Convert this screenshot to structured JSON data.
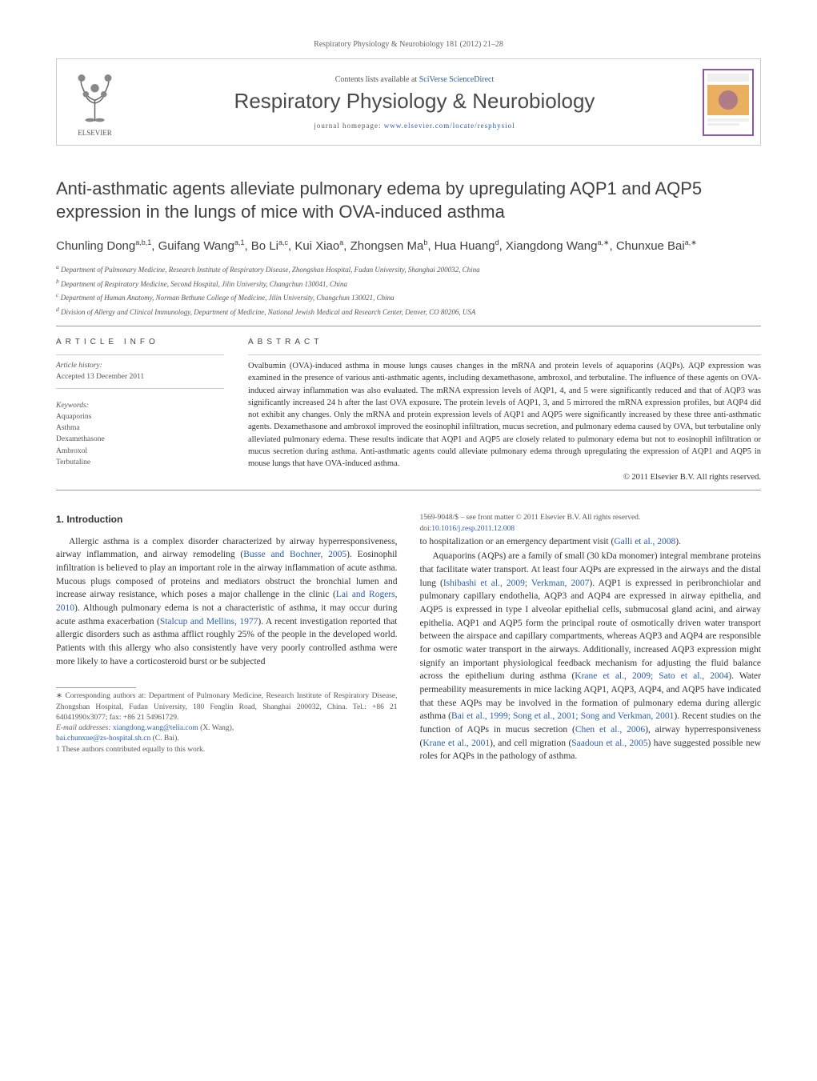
{
  "journal_ref": "Respiratory Physiology & Neurobiology 181 (2012) 21–28",
  "header": {
    "contents_prefix": "Contents lists available at ",
    "contents_link": "SciVerse ScienceDirect",
    "journal_title": "Respiratory Physiology & Neurobiology",
    "homepage_prefix": "journal homepage: ",
    "homepage_link": "www.elsevier.com/locate/resphysiol",
    "publisher_name": "ELSEVIER"
  },
  "article": {
    "title": "Anti-asthmatic agents alleviate pulmonary edema by upregulating AQP1 and AQP5 expression in the lungs of mice with OVA-induced asthma",
    "authors_html": "Chunling Dong<sup>a,b,1</sup>, Guifang Wang<sup>a,1</sup>, Bo Li<sup>a,c</sup>, Kui Xiao<sup>a</sup>, Zhongsen Ma<sup>b</sup>, Hua Huang<sup>d</sup>, Xiangdong Wang<sup>a,∗</sup>, Chunxue Bai<sup>a,∗</sup>",
    "affiliations": [
      "a Department of Pulmonary Medicine, Research Institute of Respiratory Disease, Zhongshan Hospital, Fudan University, Shanghai 200032, China",
      "b Department of Respiratory Medicine, Second Hospital, Jilin University, Changchun 130041, China",
      "c Department of Human Anatomy, Norman Bethune College of Medicine, Jilin University, Changchun 130021, China",
      "d Division of Allergy and Clinical Immunology, Department of Medicine, National Jewish Medical and Research Center, Denver, CO 80206, USA"
    ]
  },
  "info": {
    "label": "ARTICLE INFO",
    "history_label": "Article history:",
    "history_text": "Accepted 13 December 2011",
    "keywords_label": "Keywords:",
    "keywords": [
      "Aquaporins",
      "Asthma",
      "Dexamethasone",
      "Ambroxol",
      "Terbutaline"
    ]
  },
  "abstract": {
    "label": "ABSTRACT",
    "text": "Ovalbumin (OVA)-induced asthma in mouse lungs causes changes in the mRNA and protein levels of aquaporins (AQPs). AQP expression was examined in the presence of various anti-asthmatic agents, including dexamethasone, ambroxol, and terbutaline. The influence of these agents on OVA-induced airway inflammation was also evaluated. The mRNA expression levels of AQP1, 4, and 5 were significantly reduced and that of AQP3 was significantly increased 24 h after the last OVA exposure. The protein levels of AQP1, 3, and 5 mirrored the mRNA expression profiles, but AQP4 did not exhibit any changes. Only the mRNA and protein expression levels of AQP1 and AQP5 were significantly increased by these three anti-asthmatic agents. Dexamethasone and ambroxol improved the eosinophil infiltration, mucus secretion, and pulmonary edema caused by OVA, but terbutaline only alleviated pulmonary edema. These results indicate that AQP1 and AQP5 are closely related to pulmonary edema but not to eosinophil infiltration or mucus secretion during asthma. Anti-asthmatic agents could alleviate pulmonary edema through upregulating the expression of AQP1 and AQP5 in mouse lungs that have OVA-induced asthma.",
    "copyright": "© 2011 Elsevier B.V. All rights reserved."
  },
  "body": {
    "section_heading": "1. Introduction",
    "p1_pre": "Allergic asthma is a complex disorder characterized by airway hyperresponsiveness, airway inflammation, and airway remodeling (",
    "p1_link1": "Busse and Bochner, 2005",
    "p1_mid1": "). Eosinophil infiltration is believed to play an important role in the airway inflammation of acute asthma. Mucous plugs composed of proteins and mediators obstruct the bronchial lumen and increase airway resistance, which poses a major challenge in the clinic (",
    "p1_link2": "Lai and Rogers, 2010",
    "p1_mid2": "). Although pulmonary edema is not a characteristic of asthma, it may occur during acute asthma exacerbation (",
    "p1_link3": "Stalcup and Mellins, 1977",
    "p1_mid3": "). A recent investigation reported that allergic disorders such as asthma afflict roughly 25% of the people in the developed world. Patients with this allergy who also consistently have very poorly controlled asthma were more likely to have a corticosteroid burst or be subjected",
    "p2_pre": "to hospitalization or an emergency department visit (",
    "p2_link1": "Galli et al., 2008",
    "p2_post": ").",
    "p3_pre": "Aquaporins (AQPs) are a family of small (30 kDa monomer) integral membrane proteins that facilitate water transport. At least four AQPs are expressed in the airways and the distal lung (",
    "p3_link1": "Ishibashi et al., 2009; Verkman, 2007",
    "p3_mid1": "). AQP1 is expressed in peribronchiolar and pulmonary capillary endothelia, AQP3 and AQP4 are expressed in airway epithelia, and AQP5 is expressed in type I alveolar epithelial cells, submucosal gland acini, and airway epithelia. AQP1 and AQP5 form the principal route of osmotically driven water transport between the airspace and capillary compartments, whereas AQP3 and AQP4 are responsible for osmotic water transport in the airways. Additionally, increased AQP3 expression might signify an important physiological feedback mechanism for adjusting the fluid balance across the epithelium during asthma (",
    "p3_link2": "Krane et al., 2009; Sato et al., 2004",
    "p3_mid2": "). Water permeability measurements in mice lacking AQP1, AQP3, AQP4, and AQP5 have indicated that these AQPs may be involved in the formation of pulmonary edema during allergic asthma (",
    "p3_link3": "Bai et al., 1999; Song et al., 2001; Song and Verkman, 2001",
    "p3_mid3": "). Recent studies on the function of AQPs in mucus secretion (",
    "p3_link4": "Chen et al., 2006",
    "p3_mid4": "), airway hyperresponsiveness (",
    "p3_link5": "Krane et al., 2001",
    "p3_mid5": "), and cell migration (",
    "p3_link6": "Saadoun et al., 2005",
    "p3_mid6": ") have suggested possible new roles for AQPs in the pathology of asthma."
  },
  "footnotes": {
    "corr": "∗ Corresponding authors at: Department of Pulmonary Medicine, Research Institute of Respiratory Disease, Zhongshan Hospital, Fudan University, 180 Fenglin Road, Shanghai 200032, China. Tel.: +86 21 64041990x3077; fax: +86 21 54961729.",
    "email_label": "E-mail addresses: ",
    "email1": "xiangdong.wang@telia.com",
    "email1_who": " (X. Wang),",
    "email2": "bai.chunxue@zs-hospital.sh.cn",
    "email2_who": " (C. Bai).",
    "equal": "1 These authors contributed equally to this work.",
    "frontmatter": "1569-9048/$ – see front matter © 2011 Elsevier B.V. All rights reserved.",
    "doi_label": "doi:",
    "doi": "10.1016/j.resp.2011.12.008"
  },
  "colors": {
    "link": "#2a5db0",
    "text": "#333333",
    "muted": "#555555",
    "rule": "#999999",
    "box": "#cccccc",
    "logo_orange": "#e8762a",
    "cover_border": "#8a5a9e",
    "cover_panel": "#e8b060"
  }
}
